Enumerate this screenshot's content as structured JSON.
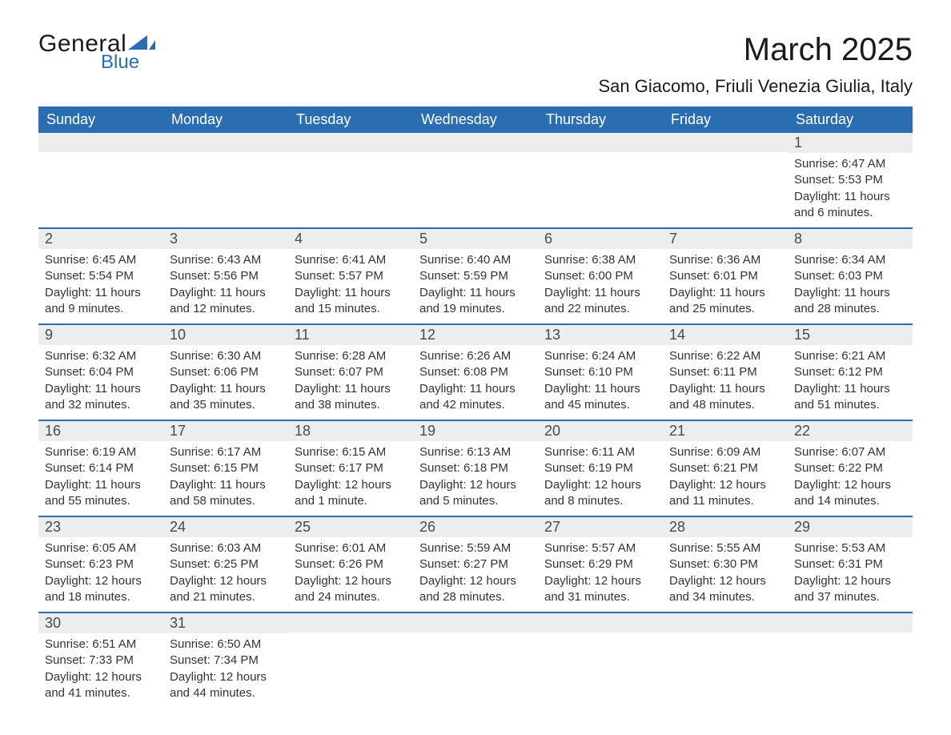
{
  "logo": {
    "word1": "General",
    "word2": "Blue",
    "text_color": "#1a1a1a",
    "accent_color": "#2a6db0"
  },
  "header": {
    "month_title": "March 2025",
    "location": "San Giacomo, Friuli Venezia Giulia, Italy"
  },
  "colors": {
    "header_bg": "#2a6db0",
    "header_text": "#ffffff",
    "daynum_bg": "#ededed",
    "daynum_text": "#4a4a4a",
    "body_text": "#333333",
    "row_divider": "#2a6db0",
    "page_bg": "#ffffff"
  },
  "typography": {
    "title_fontsize_pt": 30,
    "location_fontsize_pt": 16,
    "dayheader_fontsize_pt": 13,
    "daynum_fontsize_pt": 13,
    "body_fontsize_pt": 11
  },
  "day_headers": [
    "Sunday",
    "Monday",
    "Tuesday",
    "Wednesday",
    "Thursday",
    "Friday",
    "Saturday"
  ],
  "labels": {
    "sunrise": "Sunrise:",
    "sunset": "Sunset:",
    "daylight": "Daylight:"
  },
  "weeks": [
    [
      {
        "day": "",
        "sunrise": "",
        "sunset": "",
        "daylight": ""
      },
      {
        "day": "",
        "sunrise": "",
        "sunset": "",
        "daylight": ""
      },
      {
        "day": "",
        "sunrise": "",
        "sunset": "",
        "daylight": ""
      },
      {
        "day": "",
        "sunrise": "",
        "sunset": "",
        "daylight": ""
      },
      {
        "day": "",
        "sunrise": "",
        "sunset": "",
        "daylight": ""
      },
      {
        "day": "",
        "sunrise": "",
        "sunset": "",
        "daylight": ""
      },
      {
        "day": "1",
        "sunrise": "Sunrise: 6:47 AM",
        "sunset": "Sunset: 5:53 PM",
        "daylight": "Daylight: 11 hours and 6 minutes."
      }
    ],
    [
      {
        "day": "2",
        "sunrise": "Sunrise: 6:45 AM",
        "sunset": "Sunset: 5:54 PM",
        "daylight": "Daylight: 11 hours and 9 minutes."
      },
      {
        "day": "3",
        "sunrise": "Sunrise: 6:43 AM",
        "sunset": "Sunset: 5:56 PM",
        "daylight": "Daylight: 11 hours and 12 minutes."
      },
      {
        "day": "4",
        "sunrise": "Sunrise: 6:41 AM",
        "sunset": "Sunset: 5:57 PM",
        "daylight": "Daylight: 11 hours and 15 minutes."
      },
      {
        "day": "5",
        "sunrise": "Sunrise: 6:40 AM",
        "sunset": "Sunset: 5:59 PM",
        "daylight": "Daylight: 11 hours and 19 minutes."
      },
      {
        "day": "6",
        "sunrise": "Sunrise: 6:38 AM",
        "sunset": "Sunset: 6:00 PM",
        "daylight": "Daylight: 11 hours and 22 minutes."
      },
      {
        "day": "7",
        "sunrise": "Sunrise: 6:36 AM",
        "sunset": "Sunset: 6:01 PM",
        "daylight": "Daylight: 11 hours and 25 minutes."
      },
      {
        "day": "8",
        "sunrise": "Sunrise: 6:34 AM",
        "sunset": "Sunset: 6:03 PM",
        "daylight": "Daylight: 11 hours and 28 minutes."
      }
    ],
    [
      {
        "day": "9",
        "sunrise": "Sunrise: 6:32 AM",
        "sunset": "Sunset: 6:04 PM",
        "daylight": "Daylight: 11 hours and 32 minutes."
      },
      {
        "day": "10",
        "sunrise": "Sunrise: 6:30 AM",
        "sunset": "Sunset: 6:06 PM",
        "daylight": "Daylight: 11 hours and 35 minutes."
      },
      {
        "day": "11",
        "sunrise": "Sunrise: 6:28 AM",
        "sunset": "Sunset: 6:07 PM",
        "daylight": "Daylight: 11 hours and 38 minutes."
      },
      {
        "day": "12",
        "sunrise": "Sunrise: 6:26 AM",
        "sunset": "Sunset: 6:08 PM",
        "daylight": "Daylight: 11 hours and 42 minutes."
      },
      {
        "day": "13",
        "sunrise": "Sunrise: 6:24 AM",
        "sunset": "Sunset: 6:10 PM",
        "daylight": "Daylight: 11 hours and 45 minutes."
      },
      {
        "day": "14",
        "sunrise": "Sunrise: 6:22 AM",
        "sunset": "Sunset: 6:11 PM",
        "daylight": "Daylight: 11 hours and 48 minutes."
      },
      {
        "day": "15",
        "sunrise": "Sunrise: 6:21 AM",
        "sunset": "Sunset: 6:12 PM",
        "daylight": "Daylight: 11 hours and 51 minutes."
      }
    ],
    [
      {
        "day": "16",
        "sunrise": "Sunrise: 6:19 AM",
        "sunset": "Sunset: 6:14 PM",
        "daylight": "Daylight: 11 hours and 55 minutes."
      },
      {
        "day": "17",
        "sunrise": "Sunrise: 6:17 AM",
        "sunset": "Sunset: 6:15 PM",
        "daylight": "Daylight: 11 hours and 58 minutes."
      },
      {
        "day": "18",
        "sunrise": "Sunrise: 6:15 AM",
        "sunset": "Sunset: 6:17 PM",
        "daylight": "Daylight: 12 hours and 1 minute."
      },
      {
        "day": "19",
        "sunrise": "Sunrise: 6:13 AM",
        "sunset": "Sunset: 6:18 PM",
        "daylight": "Daylight: 12 hours and 5 minutes."
      },
      {
        "day": "20",
        "sunrise": "Sunrise: 6:11 AM",
        "sunset": "Sunset: 6:19 PM",
        "daylight": "Daylight: 12 hours and 8 minutes."
      },
      {
        "day": "21",
        "sunrise": "Sunrise: 6:09 AM",
        "sunset": "Sunset: 6:21 PM",
        "daylight": "Daylight: 12 hours and 11 minutes."
      },
      {
        "day": "22",
        "sunrise": "Sunrise: 6:07 AM",
        "sunset": "Sunset: 6:22 PM",
        "daylight": "Daylight: 12 hours and 14 minutes."
      }
    ],
    [
      {
        "day": "23",
        "sunrise": "Sunrise: 6:05 AM",
        "sunset": "Sunset: 6:23 PM",
        "daylight": "Daylight: 12 hours and 18 minutes."
      },
      {
        "day": "24",
        "sunrise": "Sunrise: 6:03 AM",
        "sunset": "Sunset: 6:25 PM",
        "daylight": "Daylight: 12 hours and 21 minutes."
      },
      {
        "day": "25",
        "sunrise": "Sunrise: 6:01 AM",
        "sunset": "Sunset: 6:26 PM",
        "daylight": "Daylight: 12 hours and 24 minutes."
      },
      {
        "day": "26",
        "sunrise": "Sunrise: 5:59 AM",
        "sunset": "Sunset: 6:27 PM",
        "daylight": "Daylight: 12 hours and 28 minutes."
      },
      {
        "day": "27",
        "sunrise": "Sunrise: 5:57 AM",
        "sunset": "Sunset: 6:29 PM",
        "daylight": "Daylight: 12 hours and 31 minutes."
      },
      {
        "day": "28",
        "sunrise": "Sunrise: 5:55 AM",
        "sunset": "Sunset: 6:30 PM",
        "daylight": "Daylight: 12 hours and 34 minutes."
      },
      {
        "day": "29",
        "sunrise": "Sunrise: 5:53 AM",
        "sunset": "Sunset: 6:31 PM",
        "daylight": "Daylight: 12 hours and 37 minutes."
      }
    ],
    [
      {
        "day": "30",
        "sunrise": "Sunrise: 6:51 AM",
        "sunset": "Sunset: 7:33 PM",
        "daylight": "Daylight: 12 hours and 41 minutes."
      },
      {
        "day": "31",
        "sunrise": "Sunrise: 6:50 AM",
        "sunset": "Sunset: 7:34 PM",
        "daylight": "Daylight: 12 hours and 44 minutes."
      },
      {
        "day": "",
        "sunrise": "",
        "sunset": "",
        "daylight": ""
      },
      {
        "day": "",
        "sunrise": "",
        "sunset": "",
        "daylight": ""
      },
      {
        "day": "",
        "sunrise": "",
        "sunset": "",
        "daylight": ""
      },
      {
        "day": "",
        "sunrise": "",
        "sunset": "",
        "daylight": ""
      },
      {
        "day": "",
        "sunrise": "",
        "sunset": "",
        "daylight": ""
      }
    ]
  ]
}
